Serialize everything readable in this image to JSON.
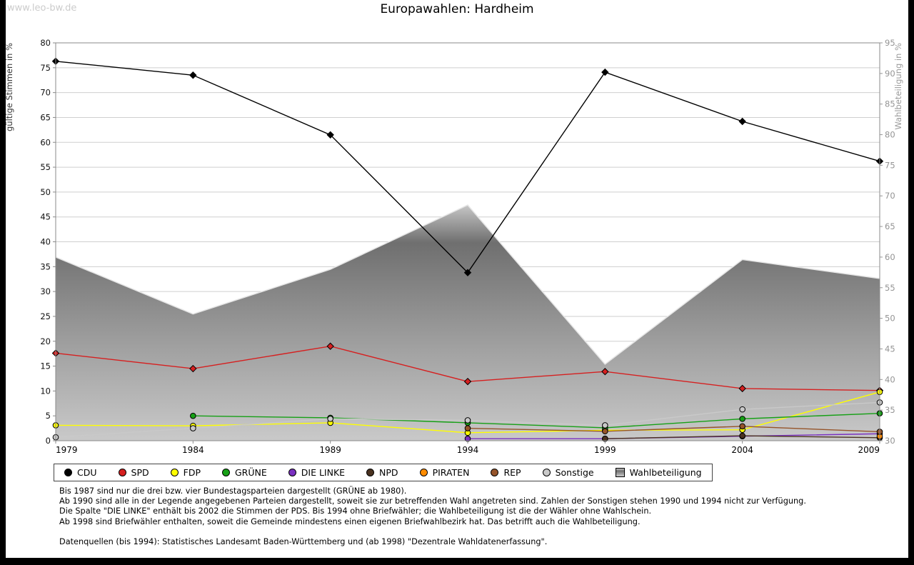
{
  "watermark": "www.leo-bw.de",
  "title": "Europawahlen: Hardheim",
  "chart_data": {
    "type": "line",
    "title": "Europawahlen: Hardheim",
    "categories": [
      "1979",
      "1984",
      "1989",
      "1994",
      "1999",
      "2004",
      "2009"
    ],
    "left_axis": {
      "label": "gültige Stimmen in %",
      "min": 0,
      "max": 80,
      "step": 5
    },
    "right_axis": {
      "label": "Wahlbeteiligung in %",
      "min": 30,
      "max": 95,
      "step": 5
    },
    "grid": true,
    "legend_position": "bottom",
    "series": [
      {
        "name": "CDU",
        "color": "#000000",
        "axis": "left",
        "marker": "diamond",
        "values": [
          76.3,
          73.5,
          61.5,
          33.8,
          74.1,
          64.2,
          56.2
        ]
      },
      {
        "name": "SPD",
        "color": "#d62020",
        "axis": "left",
        "marker": "diamond",
        "values": [
          17.6,
          14.5,
          19.0,
          11.9,
          13.9,
          10.5,
          10.1
        ]
      },
      {
        "name": "FDP",
        "color": "#ffff00",
        "axis": "left",
        "marker": "circle",
        "values": [
          3.1,
          3.0,
          3.6,
          1.6,
          2.1,
          2.2,
          9.8
        ]
      },
      {
        "name": "GRÜNE",
        "color": "#16a016",
        "axis": "left",
        "marker": "circle",
        "values": [
          null,
          5.0,
          4.6,
          3.6,
          2.6,
          4.4,
          5.5
        ]
      },
      {
        "name": "DIE LINKE",
        "color": "#7a30c0",
        "axis": "left",
        "marker": "circle",
        "values": [
          null,
          null,
          null,
          0.4,
          0.4,
          0.9,
          1.4
        ]
      },
      {
        "name": "NPD",
        "color": "#4a3220",
        "axis": "left",
        "marker": "circle",
        "values": [
          null,
          null,
          null,
          null,
          0.4,
          1.0,
          0.6
        ]
      },
      {
        "name": "PIRATEN",
        "color": "#ff8c00",
        "axis": "left",
        "marker": "circle",
        "values": [
          null,
          null,
          null,
          null,
          null,
          null,
          0.9
        ]
      },
      {
        "name": "REP",
        "color": "#95542a",
        "axis": "left",
        "marker": "circle",
        "values": [
          null,
          null,
          null,
          2.5,
          1.9,
          2.9,
          1.8
        ]
      },
      {
        "name": "Sonstige",
        "color": "#c9c9c9",
        "axis": "left",
        "marker": "circle",
        "values": [
          0.7,
          2.5,
          4.4,
          4.1,
          3.1,
          6.3,
          7.7
        ]
      },
      {
        "name": "Wahlbeteiligung",
        "color": "#a0a0a0",
        "axis": "right",
        "type": "area",
        "values": [
          60.0,
          50.7,
          58.0,
          68.5,
          42.5,
          59.6,
          56.5
        ]
      }
    ]
  },
  "footnotes": [
    "Bis 1987 sind nur die drei bzw. vier Bundestagsparteien dargestellt (GRÜNE ab 1980).",
    "Ab 1990 sind alle in der Legende angegebenen Parteien dargestellt, soweit sie zur betreffenden Wahl angetreten sind. Zahlen der Sonstigen stehen 1990 und 1994 nicht zur Verfügung.",
    "Die Spalte \"DIE LINKE\" enthält bis 2002 die Stimmen der PDS. Bis 1994 ohne Briefwähler; die Wahlbeteiligung ist die der Wähler ohne Wahlschein.",
    "Ab 1998 sind Briefwähler enthalten, soweit die Gemeinde mindestens einen eigenen Briefwahlbezirk hat. Das betrifft auch die Wahlbeteiligung.",
    "",
    "Datenquellen (bis 1994): Statistisches Landesamt Baden-Württemberg und (ab 1998) \"Dezentrale Wahldatenerfassung\"."
  ]
}
